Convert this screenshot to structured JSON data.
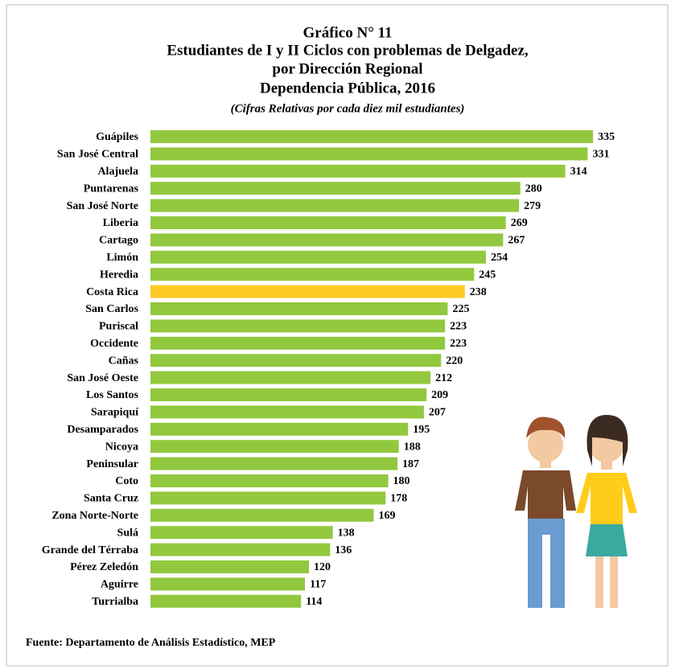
{
  "chart_data": {
    "type": "bar",
    "orientation": "horizontal",
    "title": [
      "Gráfico N° 11",
      "Estudiantes de I y II Ciclos con problemas de Delgadez,",
      "por Dirección Regional",
      "Dependencia Pública, 2016"
    ],
    "subtitle": "(Cifras Relativas por cada diez mil estudiantes)",
    "categories": [
      "Guápiles",
      "San José Central",
      "Alajuela",
      "Puntarenas",
      "San José Norte",
      "Liberia",
      "Cartago",
      "Limón",
      "Heredia",
      "Costa Rica",
      "San Carlos",
      "Puriscal",
      "Occidente",
      "Cañas",
      "San José Oeste",
      "Los Santos",
      "Sarapiquí",
      "Desamparados",
      "Nicoya",
      "Peninsular",
      "Coto",
      "Santa Cruz",
      "Zona Norte-Norte",
      "Sulá",
      "Grande del Térraba",
      "Pérez Zeledón",
      "Aguirre",
      "Turrialba"
    ],
    "values": [
      335,
      331,
      314,
      280,
      279,
      269,
      267,
      254,
      245,
      238,
      225,
      223,
      223,
      220,
      212,
      209,
      207,
      195,
      188,
      187,
      180,
      178,
      169,
      138,
      136,
      120,
      117,
      114
    ],
    "colors": [
      "#92c83e",
      "#92c83e",
      "#92c83e",
      "#92c83e",
      "#92c83e",
      "#92c83e",
      "#92c83e",
      "#92c83e",
      "#92c83e",
      "#ffc926",
      "#92c83e",
      "#92c83e",
      "#92c83e",
      "#92c83e",
      "#92c83e",
      "#92c83e",
      "#92c83e",
      "#92c83e",
      "#92c83e",
      "#92c83e",
      "#92c83e",
      "#92c83e",
      "#92c83e",
      "#92c83e",
      "#92c83e",
      "#92c83e",
      "#92c83e",
      "#92c83e"
    ],
    "source": "Fuente: Departamento de Análisis Estadístico, MEP"
  }
}
